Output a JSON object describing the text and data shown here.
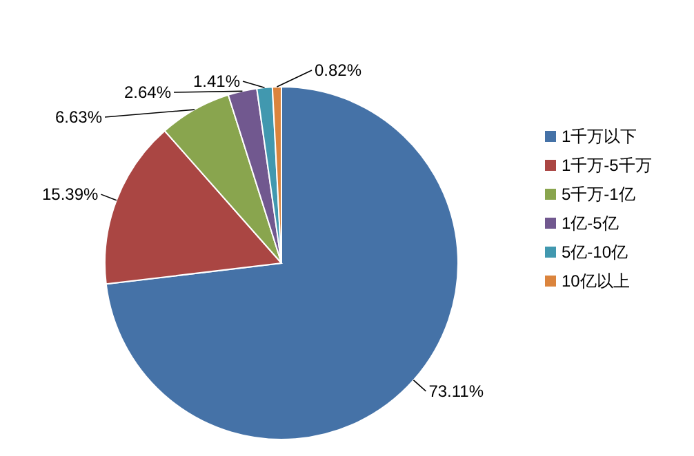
{
  "chart_data": {
    "type": "pie",
    "categories": [
      "1千万以下",
      "1千万-5千万",
      "5千万-1亿",
      "1亿-5亿",
      "5亿-10亿",
      "10亿以上"
    ],
    "values": [
      73.11,
      15.39,
      6.63,
      2.64,
      1.41,
      0.82
    ],
    "value_labels": [
      "73.11%",
      "15.39%",
      "6.63%",
      "2.64%",
      "1.41%",
      "0.82%"
    ],
    "colors": [
      "#4572a7",
      "#aa4643",
      "#89a54e",
      "#71588f",
      "#4198af",
      "#db843d"
    ],
    "legend": "right"
  }
}
